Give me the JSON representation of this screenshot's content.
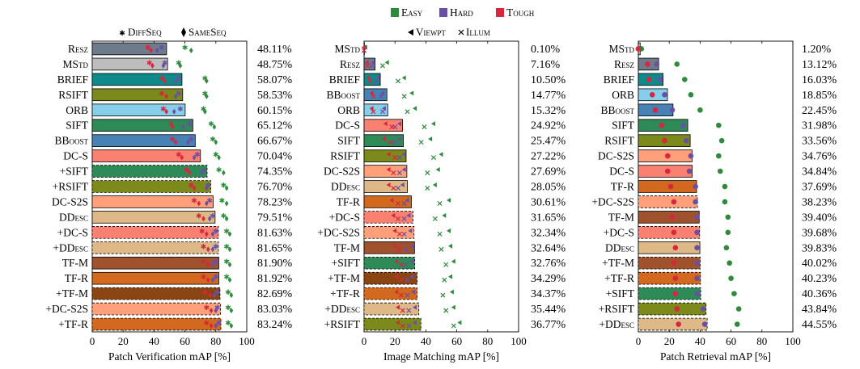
{
  "legend": {
    "difficulty": [
      {
        "key": "easy",
        "label": "Easy",
        "color": "#2e8b3c"
      },
      {
        "key": "hard",
        "label": "Hard",
        "color": "#6a4fa3"
      },
      {
        "key": "tough",
        "label": "Tough",
        "color": "#d7263d"
      }
    ],
    "patch_verification": [
      {
        "key": "diffseq",
        "label": "DiffSeq",
        "marker": "*"
      },
      {
        "key": "sameseq",
        "label": "SameSeq",
        "marker": "◆"
      }
    ],
    "image_matching": [
      {
        "key": "viewpt",
        "label": "Viewpt",
        "marker": "◀"
      },
      {
        "key": "illum",
        "label": "Illum",
        "marker": "×"
      }
    ]
  },
  "chart_data": [
    {
      "type": "bar",
      "orientation": "horizontal",
      "title": "Patch Verification",
      "xlabel": "Patch Verification mAP [%]",
      "xlim": [
        0,
        100
      ],
      "xticks": [
        0,
        20,
        40,
        60,
        80,
        100
      ],
      "categories": [
        "Resz",
        "MStd",
        "BRIEF",
        "RSIFT",
        "ORB",
        "SIFT",
        "BBoost",
        "DC-S",
        "+SIFT",
        "+RSIFT",
        "DC-S2S",
        "DDesc",
        "+DC-S",
        "+DDesc",
        "TF-M",
        "TF-R",
        "+TF-M",
        "+DC-S2S",
        "+TF-R"
      ],
      "value_labels": [
        "48.11%",
        "48.75%",
        "58.07%",
        "58.53%",
        "60.15%",
        "65.12%",
        "66.67%",
        "70.04%",
        "74.35%",
        "76.70%",
        "78.23%",
        "79.51%",
        "81.63%",
        "81.65%",
        "81.90%",
        "81.92%",
        "82.69%",
        "83.03%",
        "83.24%"
      ],
      "values": [
        48.11,
        48.75,
        58.07,
        58.53,
        60.15,
        65.12,
        66.67,
        70.04,
        74.35,
        76.7,
        78.23,
        79.51,
        81.63,
        81.65,
        81.9,
        81.92,
        82.69,
        83.03,
        83.24
      ],
      "colors": [
        "#6d7b8d",
        "#bdbdbd",
        "#0e8a8a",
        "#7b8a1a",
        "#87ceeb",
        "#2e8b57",
        "#4682b4",
        "#fa8072",
        "#2e8b57",
        "#7b8a1a",
        "#ffa07a",
        "#deb887",
        "#fa8072",
        "#deb887",
        "#a0522d",
        "#d2691e",
        "#8b4513",
        "#ffa07a",
        "#d2691e"
      ],
      "dashed": [
        false,
        false,
        false,
        false,
        false,
        false,
        false,
        false,
        true,
        true,
        false,
        false,
        true,
        true,
        false,
        false,
        true,
        true,
        true
      ],
      "markers": {
        "diffseq": {
          "easy": [
            60,
            56,
            73,
            73,
            72,
            77,
            78,
            80,
            82,
            85,
            84,
            85,
            87,
            87,
            87,
            87,
            88,
            88,
            88
          ],
          "hard": [
            45,
            47,
            56,
            56,
            57,
            63,
            64,
            68,
            72,
            75,
            76,
            78,
            80,
            80,
            80,
            80,
            81,
            81,
            82
          ],
          "tough": [
            36,
            37,
            45,
            45,
            46,
            51,
            52,
            56,
            61,
            64,
            66,
            69,
            71,
            72,
            72,
            72,
            73,
            74,
            74
          ]
        },
        "sameseq": {
          "easy": [
            64,
            57,
            74,
            74,
            73,
            79,
            80,
            82,
            85,
            87,
            87,
            87,
            89,
            89,
            89,
            89,
            90,
            90,
            90
          ],
          "hard": [
            42,
            46,
            54,
            54,
            53,
            59,
            62,
            66,
            71,
            74,
            74,
            76,
            78,
            78,
            78,
            78,
            79,
            80,
            80
          ],
          "tough": [
            38,
            39,
            47,
            48,
            48,
            52,
            54,
            58,
            63,
            66,
            69,
            72,
            74,
            75,
            75,
            75,
            76,
            77,
            77
          ]
        }
      }
    },
    {
      "type": "bar",
      "orientation": "horizontal",
      "title": "Image Matching",
      "xlabel": "Image Matching mAP [%]",
      "xlim": [
        0,
        100
      ],
      "xticks": [
        0,
        20,
        40,
        60,
        80,
        100
      ],
      "categories": [
        "MStd",
        "Resz",
        "BRIEF",
        "BBoost",
        "ORB",
        "DC-S",
        "SIFT",
        "RSIFT",
        "DC-S2S",
        "DDesc",
        "TF-R",
        "+DC-S",
        "+DC-S2S",
        "TF-M",
        "+SIFT",
        "+TF-M",
        "+TF-R",
        "+DDesc",
        "+RSIFT"
      ],
      "value_labels": [
        "0.10%",
        "7.16%",
        "10.50%",
        "14.77%",
        "15.32%",
        "24.92%",
        "25.47%",
        "27.22%",
        "27.69%",
        "28.05%",
        "30.61%",
        "31.65%",
        "32.34%",
        "32.64%",
        "32.76%",
        "34.29%",
        "34.37%",
        "35.44%",
        "36.77%"
      ],
      "values": [
        0.1,
        7.16,
        10.5,
        14.77,
        15.32,
        24.92,
        25.47,
        27.22,
        27.69,
        28.05,
        30.61,
        31.65,
        32.34,
        32.64,
        32.76,
        34.29,
        34.37,
        35.44,
        36.77
      ],
      "colors": [
        "#bdbdbd",
        "#6d7b8d",
        "#0e8a8a",
        "#4682b4",
        "#87ceeb",
        "#fa8072",
        "#2e8b57",
        "#7b8a1a",
        "#ffa07a",
        "#deb887",
        "#d2691e",
        "#fa8072",
        "#ffa07a",
        "#a0522d",
        "#2e8b57",
        "#8b4513",
        "#d2691e",
        "#deb887",
        "#7b8a1a"
      ],
      "dashed": [
        false,
        false,
        false,
        false,
        false,
        false,
        false,
        false,
        false,
        false,
        false,
        true,
        true,
        false,
        true,
        true,
        true,
        true,
        true
      ],
      "markers": {
        "viewpt": {
          "easy": [
            1,
            15,
            26,
            31,
            33,
            45,
            43,
            50,
            48,
            46,
            55,
            52,
            55,
            56,
            58,
            56,
            57,
            58,
            62
          ],
          "hard": [
            0,
            6,
            9,
            12,
            13,
            23,
            23,
            26,
            26,
            25,
            28,
            29,
            30,
            31,
            31,
            31,
            32,
            33,
            33
          ],
          "tough": [
            0,
            2,
            3,
            5,
            5,
            14,
            13,
            16,
            16,
            16,
            18,
            19,
            20,
            20,
            21,
            21,
            21,
            22,
            22
          ]
        },
        "illum": {
          "easy": [
            0,
            12,
            22,
            26,
            28,
            39,
            37,
            45,
            41,
            41,
            49,
            46,
            49,
            50,
            53,
            52,
            51,
            53,
            58
          ],
          "hard": [
            0,
            5,
            8,
            11,
            12,
            20,
            20,
            23,
            23,
            22,
            26,
            26,
            26,
            27,
            27,
            28,
            28,
            29,
            29
          ],
          "tough": [
            0,
            2,
            4,
            6,
            6,
            18,
            17,
            20,
            19,
            19,
            22,
            22,
            23,
            23,
            24,
            24,
            24,
            25,
            25
          ]
        }
      }
    },
    {
      "type": "bar",
      "orientation": "horizontal",
      "title": "Patch Retrieval",
      "xlabel": "Patch Retrieval mAP [%]",
      "xlim": [
        0,
        100
      ],
      "xticks": [
        0,
        20,
        40,
        60,
        80,
        100
      ],
      "categories": [
        "MStd",
        "Resz",
        "BRIEF",
        "ORB",
        "BBoost",
        "SIFT",
        "RSIFT",
        "DC-S2S",
        "DC-S",
        "TF-R",
        "+DC-S2S",
        "TF-M",
        "+DC-S",
        "DDesc",
        "+TF-M",
        "+TF-R",
        "+SIFT",
        "+RSIFT",
        "+DDesc"
      ],
      "value_labels": [
        "1.20%",
        "13.12%",
        "16.03%",
        "18.85%",
        "22.45%",
        "31.98%",
        "33.56%",
        "34.76%",
        "34.84%",
        "37.69%",
        "38.23%",
        "39.40%",
        "39.68%",
        "39.83%",
        "40.02%",
        "40.23%",
        "40.36%",
        "43.84%",
        "44.55%"
      ],
      "values": [
        1.2,
        13.12,
        16.03,
        18.85,
        22.45,
        31.98,
        33.56,
        34.76,
        34.84,
        37.69,
        38.23,
        39.4,
        39.68,
        39.83,
        40.02,
        40.23,
        40.36,
        43.84,
        44.55
      ],
      "colors": [
        "#bdbdbd",
        "#6d7b8d",
        "#0e8a8a",
        "#87ceeb",
        "#4682b4",
        "#2e8b57",
        "#7b8a1a",
        "#ffa07a",
        "#fa8072",
        "#d2691e",
        "#ffa07a",
        "#a0522d",
        "#fa8072",
        "#deb887",
        "#a0522d",
        "#d2691e",
        "#2e8b57",
        "#7b8a1a",
        "#deb887"
      ],
      "dashed": [
        false,
        false,
        false,
        false,
        false,
        false,
        false,
        false,
        false,
        false,
        true,
        false,
        true,
        false,
        true,
        true,
        true,
        true,
        true
      ],
      "markers": {
        "retrieval": {
          "easy": [
            2,
            25,
            30,
            34,
            40,
            52,
            54,
            52,
            53,
            56,
            56,
            58,
            58,
            57,
            59,
            60,
            62,
            65,
            64
          ],
          "hard": [
            0,
            12,
            14,
            17,
            22,
            29,
            31,
            34,
            33,
            37,
            37,
            38,
            38,
            38,
            38,
            38,
            38,
            42,
            43
          ],
          "tough": [
            0,
            6,
            7,
            9,
            11,
            15,
            17,
            19,
            19,
            21,
            23,
            22,
            23,
            24,
            23,
            24,
            24,
            25,
            26
          ]
        }
      }
    }
  ]
}
